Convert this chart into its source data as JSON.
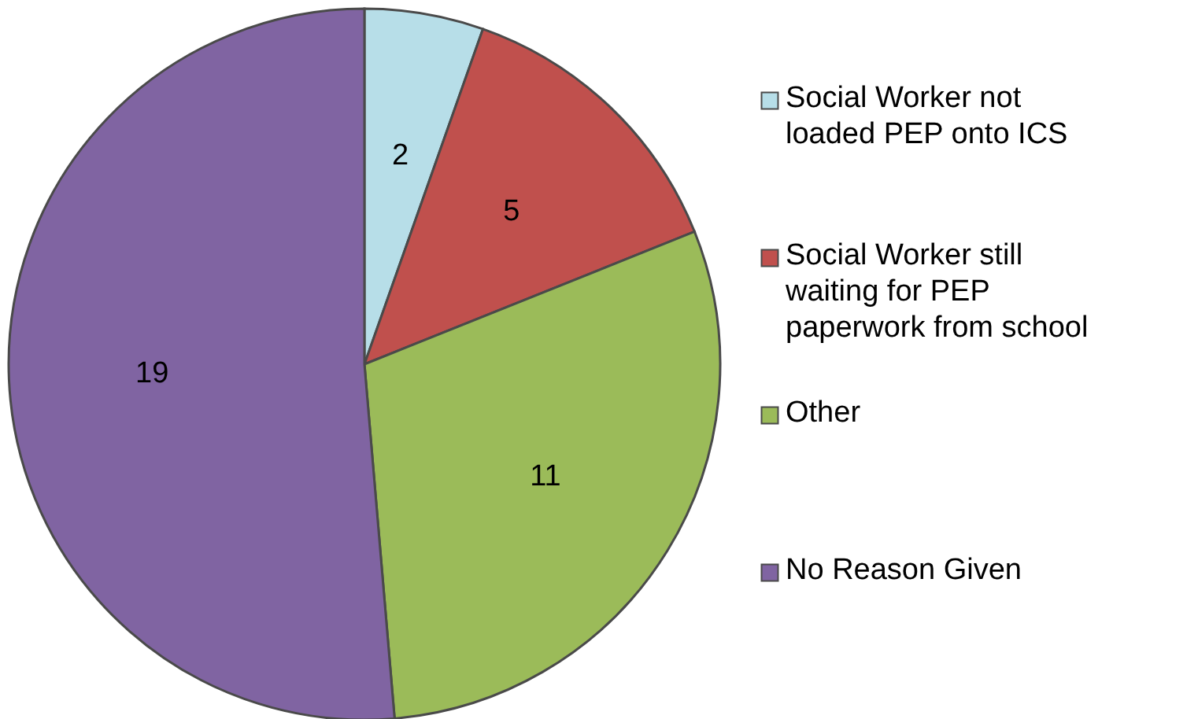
{
  "chart_data": {
    "type": "pie",
    "categories": [
      "Social Worker not loaded PEP onto ICS",
      "Social Worker still waiting for PEP paperwork from school",
      "Other",
      "No Reason Given"
    ],
    "values": [
      2,
      5,
      11,
      19
    ],
    "colors": [
      "#b7dee8",
      "#c0504d",
      "#9bbb59",
      "#8064a2"
    ],
    "data_labels": true,
    "legend": "right"
  }
}
